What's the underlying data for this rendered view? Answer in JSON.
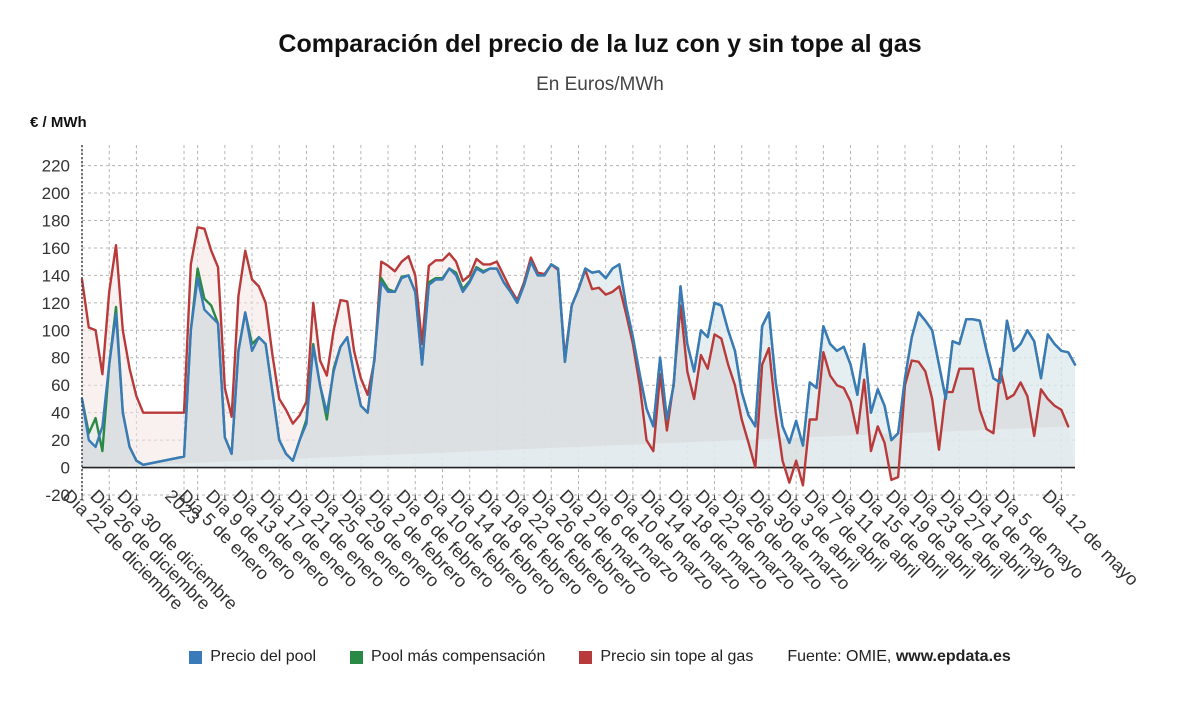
{
  "title": "Comparación del precio de la luz con y sin tope al gas",
  "subtitle": "En Euros/MWh",
  "source_label": "Fuente: OMIE, ",
  "source_site": "www.epdata.es",
  "colors": {
    "pool": "#3a7ab8",
    "compensacion": "#2a8a45",
    "sin_tope": "#b83a3a"
  },
  "chart_data": {
    "type": "line",
    "title": "Comparación del precio de la luz con y sin tope al gas",
    "subtitle": "En Euros/MWh",
    "ylabel": "€ / MWh",
    "ylim": [
      -20,
      235
    ],
    "yticks": [
      -20,
      0,
      20,
      40,
      60,
      80,
      100,
      120,
      140,
      160,
      180,
      200,
      220
    ],
    "grid": true,
    "legend_position": "bottom",
    "x_tick_labels": [
      "Día 22 de diciembre",
      "Día 26 de diciembre",
      "Día 30 de diciembre",
      "2023",
      "Día 5 de enero",
      "Día 9 de enero",
      "Día 13 de enero",
      "Día 17 de enero",
      "Día 21 de enero",
      "Día 25 de enero",
      "Día 29 de enero",
      "Día 2 de febrero",
      "Día 6 de febrero",
      "Día 10 de febrero",
      "Día 14 de febrero",
      "Día 18 de febrero",
      "Día 22 de febrero",
      "Día 26 de febrero",
      "Día 2 de marzo",
      "Día 6 de marzo",
      "Día 10 de marzo",
      "Día 14 de marzo",
      "Día 18 de marzo",
      "Día 22 de marzo",
      "Día 26 de marzo",
      "Día 30 de marzo",
      "Día 3 de abril",
      "Día 7 de abril",
      "Día 11 de abril",
      "Día 15 de abril",
      "Día 19 de abril",
      "Día 23 de abril",
      "Día 27 de abril",
      "Día 1 de mayo",
      "Día 5 de mayo",
      "Día 12 de mayo"
    ],
    "x_tick_index": [
      0,
      4,
      8,
      15,
      17,
      21,
      25,
      29,
      33,
      37,
      41,
      45,
      49,
      53,
      57,
      61,
      65,
      69,
      73,
      77,
      81,
      85,
      89,
      93,
      97,
      101,
      105,
      109,
      113,
      117,
      121,
      125,
      129,
      133,
      137,
      144
    ],
    "n_points": 147,
    "series": [
      {
        "name": "Precio del pool",
        "color": "#3a7ab8",
        "values": [
          50,
          20,
          15,
          30,
          75,
          112,
          40,
          15,
          5,
          2,
          3,
          4,
          5,
          6,
          7,
          8,
          100,
          138,
          115,
          110,
          105,
          22,
          10,
          85,
          113,
          85,
          95,
          90,
          55,
          20,
          10,
          5,
          20,
          32,
          88,
          60,
          40,
          70,
          88,
          95,
          68,
          45,
          40,
          80,
          135,
          128,
          128,
          138,
          140,
          128,
          75,
          133,
          137,
          137,
          145,
          140,
          128,
          135,
          145,
          142,
          145,
          145,
          135,
          128,
          120,
          133,
          150,
          140,
          140,
          148,
          145,
          77,
          118,
          130,
          145,
          142,
          143,
          138,
          145,
          148,
          118,
          95,
          68,
          43,
          30,
          80,
          35,
          60,
          132,
          90,
          70,
          100,
          95,
          120,
          118,
          100,
          85,
          55,
          38,
          30,
          103,
          113,
          62,
          30,
          18,
          34,
          16,
          62,
          58,
          103,
          90,
          85,
          88,
          75,
          53,
          90,
          40,
          57,
          45,
          20,
          25,
          65,
          95,
          113,
          107,
          100,
          75,
          50,
          92,
          90,
          108,
          108,
          107,
          85,
          65,
          62,
          107,
          85,
          90,
          100,
          92,
          65,
          97,
          90,
          85,
          84,
          75
        ]
      },
      {
        "name": "Pool más compensación",
        "color": "#2a8a45",
        "values": [
          50,
          25,
          36,
          12,
          75,
          117,
          40,
          15,
          5,
          2,
          3,
          4,
          5,
          6,
          7,
          8,
          100,
          145,
          123,
          118,
          105,
          22,
          10,
          85,
          113,
          90,
          95,
          90,
          55,
          20,
          10,
          5,
          20,
          35,
          90,
          60,
          35,
          72,
          88,
          95,
          68,
          45,
          40,
          80,
          138,
          130,
          128,
          139,
          140,
          128,
          75,
          135,
          138,
          138,
          145,
          142,
          130,
          136,
          146,
          143,
          145,
          145,
          135,
          128,
          120,
          133,
          150,
          140,
          140,
          148,
          145,
          77,
          118,
          130,
          145,
          142,
          143,
          138,
          145,
          148,
          118,
          95,
          68,
          43,
          30,
          80,
          35,
          60,
          132,
          90,
          70,
          100,
          95,
          120,
          118,
          100,
          85,
          55,
          38,
          30,
          103,
          113,
          62,
          30,
          18,
          34,
          16,
          62,
          58,
          103,
          90,
          85,
          88,
          75,
          53,
          90,
          40,
          57,
          45,
          20,
          25,
          65,
          95,
          113,
          107,
          100,
          75,
          50,
          92,
          90,
          108,
          108,
          107,
          85,
          65,
          62,
          107,
          85,
          90,
          100,
          92,
          65,
          97,
          90,
          85,
          84,
          75
        ]
      },
      {
        "name": "Precio sin tope al gas",
        "color": "#b83a3a",
        "values": [
          137,
          102,
          100,
          68,
          128,
          162,
          100,
          72,
          52,
          40,
          40,
          40,
          40,
          40,
          40,
          40,
          148,
          175,
          174,
          158,
          146,
          58,
          37,
          125,
          158,
          137,
          132,
          120,
          82,
          50,
          42,
          32,
          38,
          48,
          120,
          78,
          67,
          100,
          122,
          121,
          85,
          65,
          53,
          78,
          150,
          147,
          143,
          150,
          154,
          140,
          90,
          147,
          151,
          151,
          156,
          150,
          136,
          140,
          152,
          148,
          148,
          150,
          140,
          130,
          122,
          135,
          153,
          142,
          141,
          148,
          144,
          80,
          118,
          130,
          144,
          130,
          131,
          126,
          128,
          132,
          112,
          90,
          60,
          20,
          12,
          68,
          27,
          62,
          118,
          70,
          50,
          82,
          72,
          97,
          94,
          75,
          60,
          35,
          18,
          0,
          75,
          87,
          40,
          5,
          -11,
          5,
          -13,
          35,
          35,
          84,
          67,
          60,
          58,
          48,
          25,
          64,
          12,
          30,
          18,
          -9,
          -7,
          60,
          78,
          77,
          70,
          50,
          13,
          55,
          55,
          72,
          72,
          72,
          42,
          28,
          25,
          72,
          50,
          53,
          62,
          52,
          23,
          57,
          50,
          45,
          42,
          30
        ]
      }
    ]
  }
}
